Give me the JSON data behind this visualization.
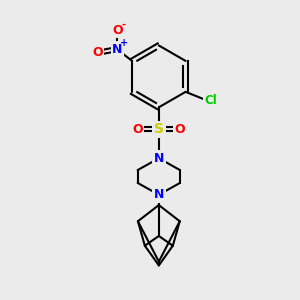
{
  "background_color": "#ebebeb",
  "atom_colors": {
    "N": "#0000ff",
    "O": "#ff0000",
    "S": "#cccc00",
    "Cl": "#00cc00",
    "C": "#000000"
  },
  "figsize": [
    3.0,
    3.0
  ],
  "dpi": 100
}
